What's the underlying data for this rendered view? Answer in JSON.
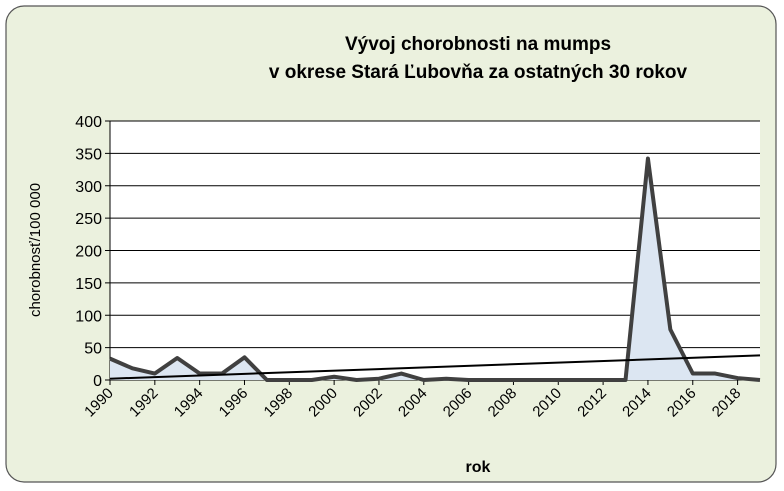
{
  "chart_data": {
    "type": "area",
    "title": [
      "Vývoj chorobnosti na mumps",
      "v okrese Stará Ľubovňa za ostatných 30 rokov"
    ],
    "x_label": "rok",
    "y_label": "chorobnosť/100 000",
    "x": [
      1990,
      1991,
      1992,
      1993,
      1994,
      1995,
      1996,
      1997,
      1998,
      1999,
      2000,
      2001,
      2002,
      2003,
      2004,
      2005,
      2006,
      2007,
      2008,
      2009,
      2010,
      2011,
      2012,
      2013,
      2014,
      2015,
      2016,
      2017,
      2018,
      2019
    ],
    "values": [
      33,
      18,
      10,
      34,
      10,
      10,
      35,
      0,
      0,
      0,
      5,
      0,
      2,
      10,
      0,
      2,
      0,
      0,
      0,
      0,
      0,
      0,
      0,
      0,
      342,
      78,
      10,
      10,
      3,
      0
    ],
    "color": "#404040",
    "fill": "#dce6f2",
    "trendline": [
      2,
      38
    ],
    "xlim": [
      1990,
      2019
    ],
    "xticks": [
      1990,
      1992,
      1994,
      1996,
      1998,
      2000,
      2002,
      2004,
      2006,
      2008,
      2010,
      2012,
      2014,
      2016,
      2018
    ],
    "ylim": [
      0,
      400
    ],
    "yticks": [
      0,
      50,
      100,
      150,
      200,
      250,
      300,
      350,
      400
    ],
    "grid": true
  }
}
